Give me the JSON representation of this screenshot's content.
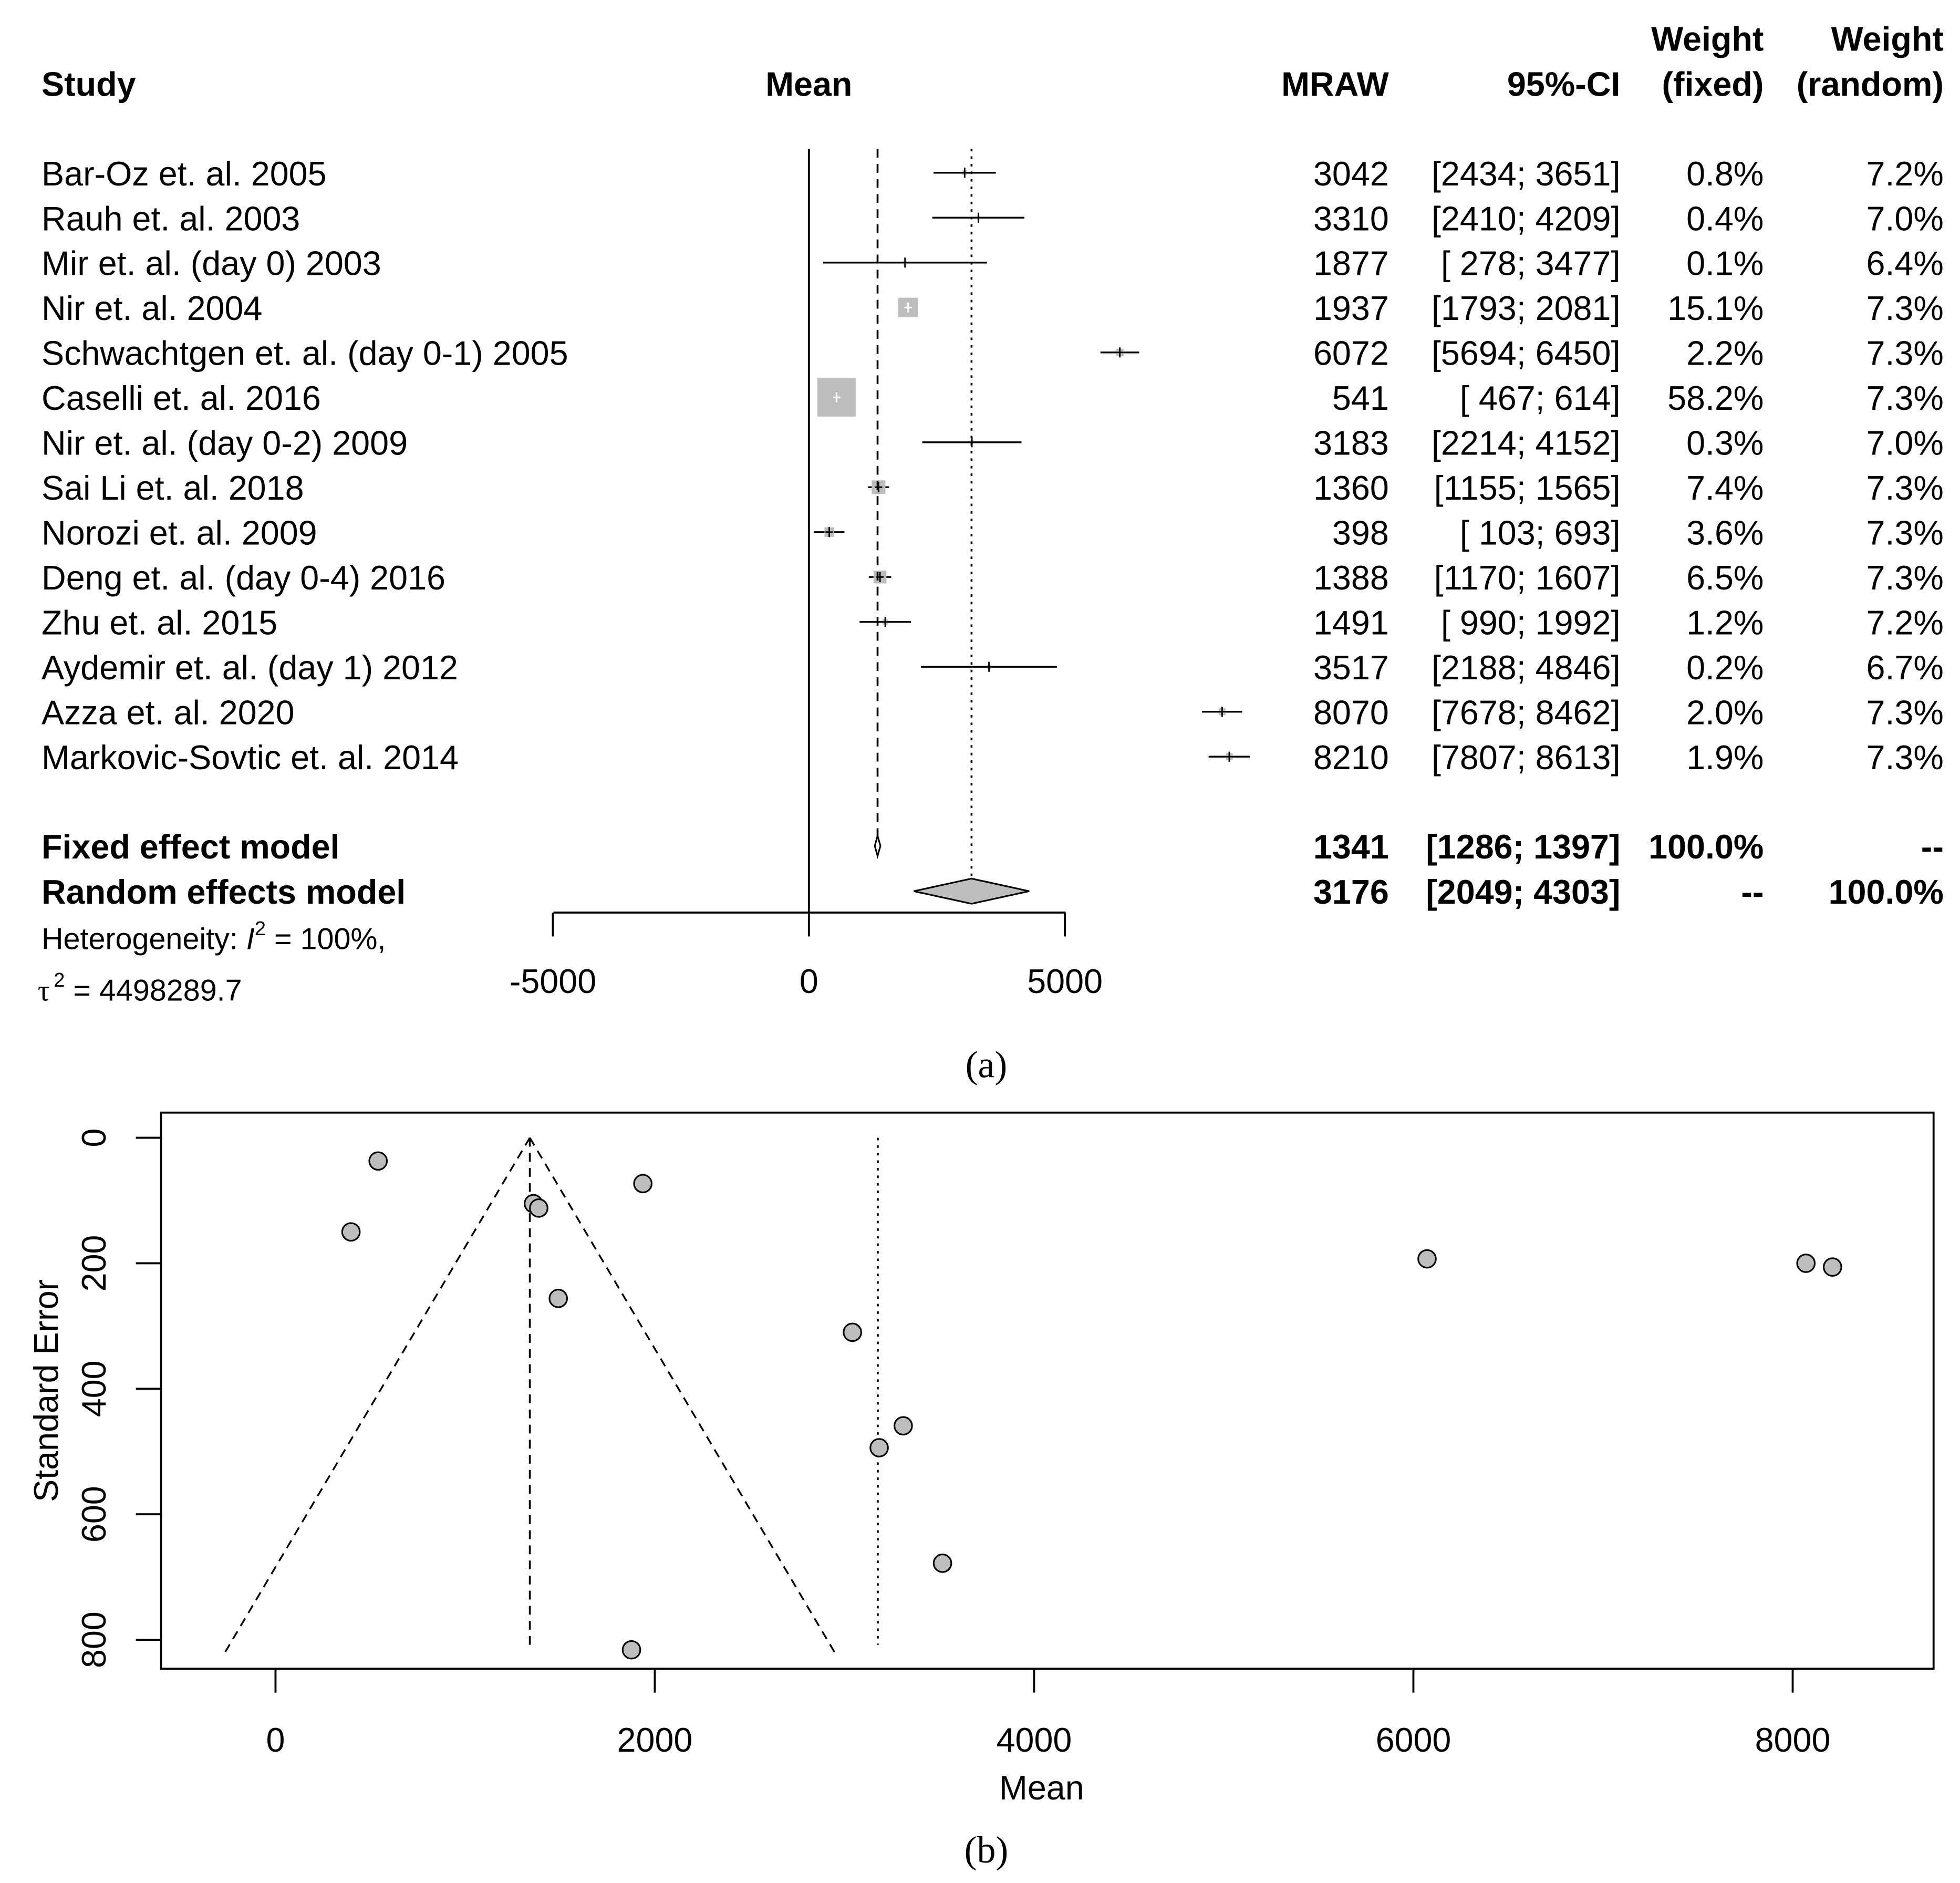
{
  "chart_data": [
    {
      "type": "forest",
      "panel_caption": "(a)",
      "headers": {
        "study": "Study",
        "mean": "Mean",
        "mraw": "MRAW",
        "ci": "95%-CI",
        "weight_fixed_1": "Weight",
        "weight_fixed_2": "(fixed)",
        "weight_random_1": "Weight",
        "weight_random_2": "(random)"
      },
      "studies": [
        {
          "name": "Bar-Oz et. al. 2005",
          "mean": 3042,
          "lower": 2434,
          "upper": 3651,
          "mraw": "3042",
          "ci": "[2434; 3651]",
          "w_fixed": "0.8%",
          "w_random": "7.2%"
        },
        {
          "name": "Rauh  et. al. 2003",
          "mean": 3310,
          "lower": 2410,
          "upper": 4209,
          "mraw": "3310",
          "ci": "[2410; 4209]",
          "w_fixed": "0.4%",
          "w_random": "7.0%"
        },
        {
          "name": "Mir et. al. (day 0) 2003",
          "mean": 1877,
          "lower": 278,
          "upper": 3477,
          "mraw": "1877",
          "ci": "[ 278; 3477]",
          "w_fixed": "0.1%",
          "w_random": "6.4%"
        },
        {
          "name": "Nir et. al. 2004",
          "mean": 1937,
          "lower": 1793,
          "upper": 2081,
          "mraw": "1937",
          "ci": "[1793; 2081]",
          "w_fixed": "15.1%",
          "w_random": "7.3%"
        },
        {
          "name": "Schwachtgen et. al. (day 0-1) 2005",
          "mean": 6072,
          "lower": 5694,
          "upper": 6450,
          "mraw": "6072",
          "ci": "[5694; 6450]",
          "w_fixed": "2.2%",
          "w_random": "7.3%"
        },
        {
          "name": "Caselli et. al. 2016",
          "mean": 541,
          "lower": 467,
          "upper": 614,
          "mraw": "541",
          "ci": "[ 467;  614]",
          "w_fixed": "58.2%",
          "w_random": "7.3%"
        },
        {
          "name": "Nir et. al. (day 0-2) 2009",
          "mean": 3183,
          "lower": 2214,
          "upper": 4152,
          "mraw": "3183",
          "ci": "[2214; 4152]",
          "w_fixed": "0.3%",
          "w_random": "7.0%"
        },
        {
          "name": "Sai Li et. al. 2018",
          "mean": 1360,
          "lower": 1155,
          "upper": 1565,
          "mraw": "1360",
          "ci": "[1155; 1565]",
          "w_fixed": "7.4%",
          "w_random": "7.3%"
        },
        {
          "name": "Norozi et. al. 2009",
          "mean": 398,
          "lower": 103,
          "upper": 693,
          "mraw": "398",
          "ci": "[ 103;  693]",
          "w_fixed": "3.6%",
          "w_random": "7.3%"
        },
        {
          "name": "Deng et. al. (day 0-4) 2016",
          "mean": 1388,
          "lower": 1170,
          "upper": 1607,
          "mraw": "1388",
          "ci": "[1170; 1607]",
          "w_fixed": "6.5%",
          "w_random": "7.3%"
        },
        {
          "name": "Zhu et. al. 2015",
          "mean": 1491,
          "lower": 990,
          "upper": 1992,
          "mraw": "1491",
          "ci": "[ 990; 1992]",
          "w_fixed": "1.2%",
          "w_random": "7.2%"
        },
        {
          "name": "Aydemir et. al. (day 1) 2012",
          "mean": 3517,
          "lower": 2188,
          "upper": 4846,
          "mraw": "3517",
          "ci": "[2188; 4846]",
          "w_fixed": "0.2%",
          "w_random": "6.7%"
        },
        {
          "name": "Azza et. al. 2020",
          "mean": 8070,
          "lower": 7678,
          "upper": 8462,
          "mraw": "8070",
          "ci": "[7678; 8462]",
          "w_fixed": "2.0%",
          "w_random": "7.3%"
        },
        {
          "name": "Markovic-Sovtic et. al. 2014",
          "mean": 8210,
          "lower": 7807,
          "upper": 8613,
          "mraw": "8210",
          "ci": "[7807; 8613]",
          "w_fixed": "1.9%",
          "w_random": "7.3%"
        }
      ],
      "models": [
        {
          "name": "Fixed effect model",
          "mean": 1341,
          "lower": 1286,
          "upper": 1397,
          "mraw": "1341",
          "ci": "[1286; 1397]",
          "w_fixed": "100.0%",
          "w_random": "--"
        },
        {
          "name": "Random effects model",
          "mean": 3176,
          "lower": 2049,
          "upper": 4303,
          "mraw": "3176",
          "ci": "[2049; 4303]",
          "w_fixed": "--",
          "w_random": "100.0%"
        }
      ],
      "heterogeneity": {
        "line1_prefix": "Heterogeneity: ",
        "i_symbol": "I",
        "i_sup": "2",
        "line1_suffix": " = 100%,",
        "tau_symbol": "τ",
        "tau_sup": "2",
        "line2_suffix": " = 4498289.7"
      },
      "xaxis": {
        "ticks": [
          -5000,
          0,
          5000
        ],
        "tick_labels": [
          "-5000",
          "0",
          "5000"
        ]
      }
    },
    {
      "type": "scatter",
      "subtype": "funnel",
      "panel_caption": "(b)",
      "xlabel": "Mean",
      "ylabel": "Standard Error",
      "xlim": [
        -300,
        8800
      ],
      "ylim": [
        0,
        840
      ],
      "y_reversed": true,
      "xticks": [
        0,
        2000,
        4000,
        6000,
        8000
      ],
      "xtick_labels": [
        "0",
        "2000",
        "4000",
        "6000",
        "8000"
      ],
      "yticks": [
        0,
        200,
        400,
        600,
        800
      ],
      "ytick_labels": [
        "0",
        "200",
        "400",
        "600",
        "800"
      ],
      "fixed_mean": 1341,
      "random_mean": 3176,
      "funnel_se_max": 820,
      "points": [
        {
          "x": 3042,
          "y": 310
        },
        {
          "x": 3310,
          "y": 459
        },
        {
          "x": 1877,
          "y": 816
        },
        {
          "x": 1937,
          "y": 73
        },
        {
          "x": 6072,
          "y": 193
        },
        {
          "x": 541,
          "y": 37
        },
        {
          "x": 3183,
          "y": 494
        },
        {
          "x": 1360,
          "y": 105
        },
        {
          "x": 398,
          "y": 150
        },
        {
          "x": 1388,
          "y": 112
        },
        {
          "x": 1491,
          "y": 256
        },
        {
          "x": 3517,
          "y": 678
        },
        {
          "x": 8070,
          "y": 200
        },
        {
          "x": 8210,
          "y": 206
        }
      ]
    }
  ]
}
